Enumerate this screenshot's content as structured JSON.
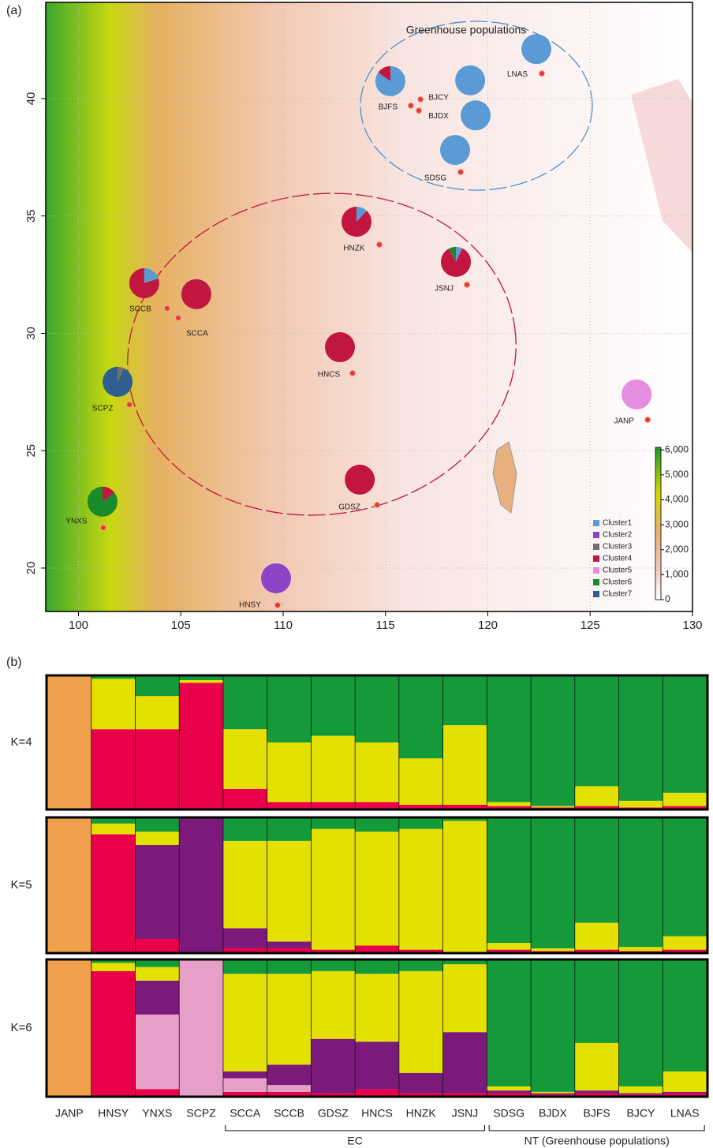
{
  "panel_a_label": "(a)",
  "panel_b_label": "(b)",
  "map": {
    "xlim": [
      98.4,
      130
    ],
    "ylim": [
      18.15,
      44.1
    ],
    "xticks": [
      100,
      105,
      110,
      115,
      120,
      125,
      130
    ],
    "yticks": [
      20,
      25,
      30,
      35,
      40
    ],
    "grid": true,
    "annotation": "Greenhouse populations",
    "clusters": [
      {
        "name": "Cluster1",
        "color": "#5b9bd5"
      },
      {
        "name": "Cluster2",
        "color": "#8e44c9"
      },
      {
        "name": "Cluster3",
        "color": "#707070"
      },
      {
        "name": "Cluster4",
        "color": "#c0163f"
      },
      {
        "name": "Cluster5",
        "color": "#e58ee0"
      },
      {
        "name": "Cluster6",
        "color": "#1a8a2a"
      },
      {
        "name": "Cluster7",
        "color": "#2e5f8e"
      }
    ],
    "populations": [
      {
        "name": "LNAS",
        "lon": 122.64,
        "lat": 41.07,
        "pie": [
          100,
          0,
          0,
          0,
          0,
          0,
          0
        ]
      },
      {
        "name": "BJFS",
        "lon": 116.24,
        "lat": 39.7,
        "pie": [
          85,
          0,
          0,
          15,
          0,
          0,
          0
        ]
      },
      {
        "name": "BJCY",
        "lon": 116.71,
        "lat": 39.97,
        "pie": [
          100,
          0,
          0,
          0,
          0,
          0,
          0
        ]
      },
      {
        "name": "BJDX",
        "lon": 116.63,
        "lat": 39.49,
        "pie": [
          100,
          0,
          0,
          0,
          0,
          0,
          0
        ]
      },
      {
        "name": "SDSG",
        "lon": 118.67,
        "lat": 36.87,
        "pie": [
          100,
          0,
          0,
          0,
          0,
          0,
          0
        ]
      },
      {
        "name": "HNZK",
        "lon": 114.7,
        "lat": 33.78,
        "pie": [
          12,
          0,
          0,
          88,
          0,
          0,
          0
        ]
      },
      {
        "name": "JSNJ",
        "lon": 118.98,
        "lat": 32.07,
        "pie": [
          7,
          0,
          0,
          85,
          0,
          8,
          0
        ]
      },
      {
        "name": "SCCB",
        "lon": 104.33,
        "lat": 31.06,
        "pie": [
          20,
          0,
          0,
          80,
          0,
          0,
          0
        ]
      },
      {
        "name": "SCCA",
        "lon": 104.87,
        "lat": 30.66,
        "pie": [
          0,
          0,
          0,
          100,
          0,
          0,
          0
        ]
      },
      {
        "name": "HNCS",
        "lon": 113.39,
        "lat": 28.3,
        "pie": [
          0,
          0,
          0,
          100,
          0,
          0,
          0
        ]
      },
      {
        "name": "SCPZ",
        "lon": 102.49,
        "lat": 26.96,
        "pie": [
          0,
          0,
          7,
          0,
          0,
          0,
          93
        ]
      },
      {
        "name": "JANP",
        "lon": 127.81,
        "lat": 26.32,
        "pie": [
          0,
          0,
          0,
          0,
          100,
          0,
          0
        ]
      },
      {
        "name": "GDSZ",
        "lon": 114.59,
        "lat": 22.69,
        "pie": [
          0,
          0,
          0,
          100,
          0,
          0,
          0
        ]
      },
      {
        "name": "YNXS",
        "lon": 101.21,
        "lat": 21.72,
        "pie": [
          0,
          0,
          0,
          15,
          0,
          85,
          0
        ]
      },
      {
        "name": "HNSY",
        "lon": 109.73,
        "lat": 18.42,
        "pie": [
          0,
          100,
          0,
          0,
          0,
          0,
          0
        ]
      }
    ],
    "colorbar": {
      "lim": [
        0,
        6100
      ],
      "ticks": [
        0,
        {
          "value": 1000,
          "label": "1,000"
        },
        {
          "value": 2000,
          "label": "2,000"
        },
        {
          "value": 3000,
          "label": "3,000"
        },
        {
          "value": 4000,
          "label": "4,000"
        },
        {
          "value": 5000,
          "label": "5,000"
        },
        {
          "value": 6000,
          "label": "6,000"
        }
      ]
    }
  },
  "structure": {
    "type": "stacked-bar",
    "populations": [
      "JANP",
      "HNSY",
      "YNXS",
      "SCPZ",
      "SCCA",
      "SCCB",
      "GDSZ",
      "HNCS",
      "HNZK",
      "JSNJ",
      "SDSG",
      "BJDX",
      "BJFS",
      "BJCY",
      "LNAS"
    ],
    "groups": [
      "EC",
      "NT (Greenhouse populations)"
    ],
    "rows": [
      {
        "label": "K=4",
        "series": [
          {
            "color": "#f0a04b",
            "values": [
              100,
              0,
              0,
              0,
              0,
              0,
              0,
              0,
              0,
              0,
              0,
              0,
              0,
              0,
              0
            ]
          },
          {
            "color": "#e8004a",
            "values": [
              0,
              60,
              60,
              95,
              15,
              5,
              5,
              5,
              3,
              3,
              2,
              1,
              2,
              1,
              2
            ]
          },
          {
            "color": "#e4e000",
            "values": [
              0,
              38,
              25,
              2,
              45,
              45,
              50,
              45,
              35,
              60,
              3,
              1,
              15,
              5,
              10
            ]
          },
          {
            "color": "#159a3a",
            "values": [
              0,
              2,
              15,
              3,
              40,
              50,
              45,
              50,
              62,
              37,
              95,
              98,
              83,
              94,
              88
            ]
          }
        ]
      },
      {
        "label": "K=5",
        "series": [
          {
            "color": "#f0a04b",
            "values": [
              100,
              0,
              0,
              0,
              0,
              0,
              0,
              0,
              0,
              0,
              0,
              0,
              0,
              0,
              0
            ]
          },
          {
            "color": "#e8004a",
            "values": [
              0,
              88,
              10,
              0,
              3,
              3,
              2,
              5,
              2,
              0,
              2,
              1,
              2,
              1,
              2
            ]
          },
          {
            "color": "#7b1a7b",
            "values": [
              0,
              0,
              70,
              100,
              15,
              5,
              0,
              0,
              0,
              0,
              0,
              0,
              0,
              0,
              0
            ]
          },
          {
            "color": "#e4e000",
            "values": [
              0,
              8,
              10,
              0,
              65,
              75,
              90,
              85,
              90,
              98,
              5,
              2,
              20,
              3,
              10
            ]
          },
          {
            "color": "#159a3a",
            "values": [
              0,
              4,
              10,
              0,
              17,
              17,
              8,
              10,
              8,
              2,
              93,
              97,
              78,
              96,
              88
            ]
          }
        ]
      },
      {
        "label": "K=6",
        "series": [
          {
            "color": "#f0a04b",
            "values": [
              100,
              0,
              0,
              0,
              0,
              0,
              0,
              0,
              0,
              0,
              0,
              0,
              0,
              0,
              0
            ]
          },
          {
            "color": "#e8004a",
            "values": [
              0,
              92,
              5,
              0,
              3,
              3,
              2,
              5,
              2,
              2,
              2,
              1,
              2,
              1,
              2
            ]
          },
          {
            "color": "#e6a0c8",
            "values": [
              0,
              0,
              55,
              100,
              10,
              5,
              0,
              0,
              0,
              0,
              0,
              0,
              0,
              0,
              0
            ]
          },
          {
            "color": "#7b1a7b",
            "values": [
              0,
              0,
              25,
              0,
              5,
              15,
              40,
              35,
              15,
              45,
              2,
              1,
              2,
              1,
              1
            ]
          },
          {
            "color": "#e4e000",
            "values": [
              0,
              6,
              10,
              0,
              72,
              67,
              50,
              50,
              75,
              50,
              3,
              1,
              35,
              5,
              15
            ]
          },
          {
            "color": "#159a3a",
            "values": [
              0,
              2,
              5,
              0,
              10,
              10,
              8,
              10,
              8,
              3,
              93,
              97,
              61,
              93,
              82
            ]
          }
        ]
      }
    ],
    "ylim": [
      0,
      100
    ]
  }
}
